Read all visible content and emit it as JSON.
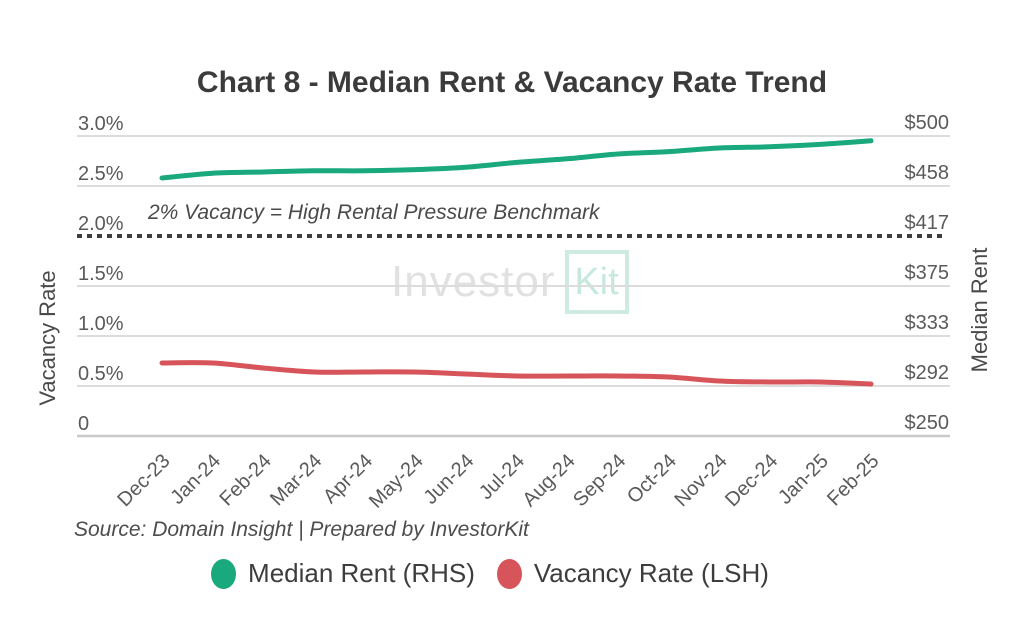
{
  "title": "Chart 8 - Median Rent & Vacancy Rate Trend",
  "watermark": {
    "part1": "Investor",
    "part2": "Kit"
  },
  "source": "Source: Domain Insight | Prepared by InvestorKit",
  "colors": {
    "median_rent_green": "#1aa87d",
    "vacancy_rate_red": "#d6545a",
    "benchmark_line": "#3d3d3d",
    "gridline": "#dcdcdc",
    "tick_text": "#5a5a5a",
    "watermark_gray": "#e1e1e1",
    "watermark_mint": "#cdebe1"
  },
  "legend": [
    {
      "label": "Median Rent (RHS)",
      "color": "#1aa87d"
    },
    {
      "label": "Vacancy Rate (LSH)",
      "color": "#d6545a"
    }
  ],
  "chart_data": {
    "type": "line",
    "title": "Chart 8 - Median Rent & Vacancy Rate Trend",
    "categories": [
      "Dec-23",
      "Jan-24",
      "Feb-24",
      "Mar-24",
      "Apr-24",
      "May-24",
      "Jun-24",
      "Jul-24",
      "Aug-24",
      "Sep-24",
      "Oct-24",
      "Nov-24",
      "Dec-24",
      "Jan-25",
      "Feb-25"
    ],
    "series": [
      {
        "name": "Median Rent (RHS)",
        "axis": "right",
        "color": "#1aa87d",
        "values": [
          465,
          469,
          470,
          471,
          471,
          472,
          474,
          478,
          481,
          485,
          487,
          490,
          491,
          493,
          496
        ]
      },
      {
        "name": "Vacancy Rate (LSH)",
        "axis": "left",
        "color": "#d6545a",
        "values": [
          0.73,
          0.73,
          0.68,
          0.64,
          0.64,
          0.64,
          0.62,
          0.6,
          0.6,
          0.6,
          0.59,
          0.55,
          0.54,
          0.54,
          0.52
        ]
      }
    ],
    "left_axis": {
      "label": "Vacancy Rate",
      "range": [
        0,
        3
      ],
      "ticks": [
        "3.0%",
        "2.5%",
        "2.0%",
        "1.5%",
        "1.0%",
        "0.5%",
        "0"
      ]
    },
    "right_axis": {
      "label": "Median Rent",
      "range": [
        250,
        500
      ],
      "ticks": [
        "$500",
        "$458",
        "$417",
        "$375",
        "$333",
        "$292",
        "$250"
      ]
    },
    "benchmark": {
      "value": 2.0,
      "axis": "left",
      "style": "dotted",
      "label": "2% Vacancy = High Rental Pressure Benchmark"
    },
    "grid": true,
    "legend_position": "bottom"
  }
}
